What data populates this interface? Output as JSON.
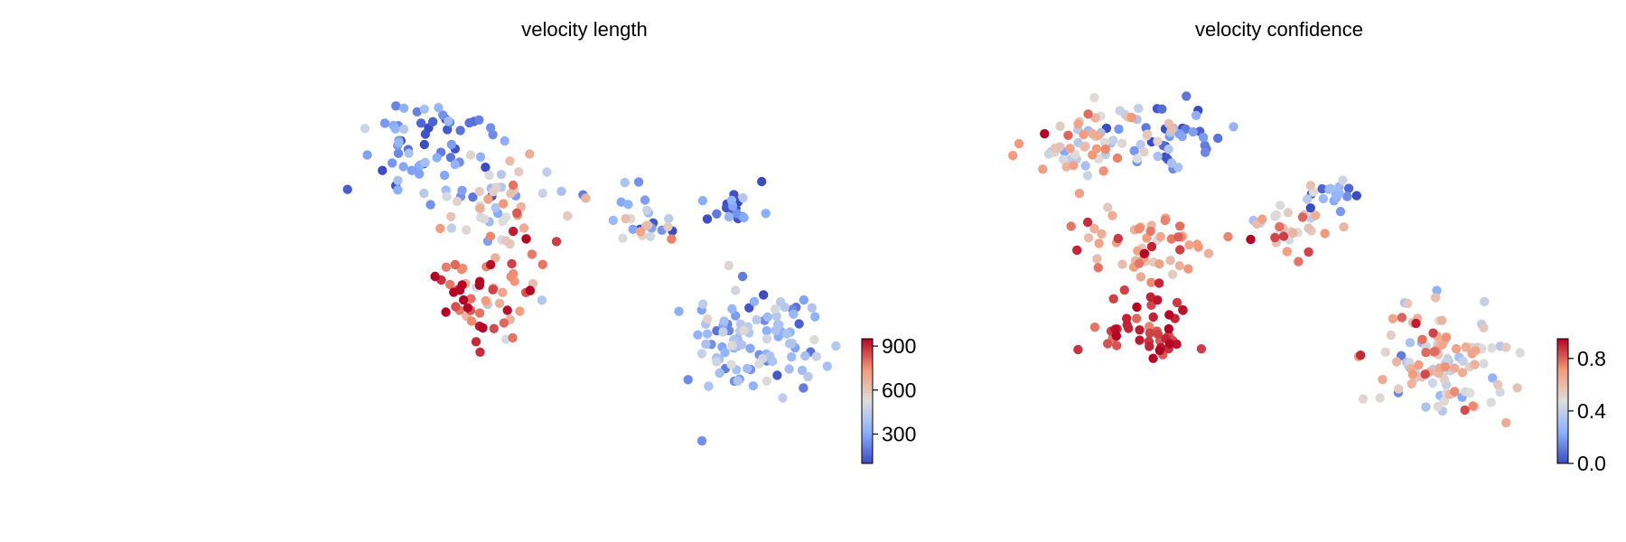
{
  "chart_data": [
    {
      "type": "scatter",
      "title": "velocity length",
      "xlabel": "",
      "ylabel": "",
      "colormap": "coolwarm",
      "colorbar": {
        "min": 100,
        "max": 950,
        "ticks": [
          300,
          600,
          900
        ],
        "tick_labels": [
          "300",
          "600",
          "900"
        ]
      },
      "clusters": [
        {
          "n": 60,
          "cx": 0.22,
          "cy": 0.79,
          "sx": 0.12,
          "sy": 0.1,
          "vmean": 220,
          "vsd": 110
        },
        {
          "n": 55,
          "cx": 0.34,
          "cy": 0.63,
          "sx": 0.13,
          "sy": 0.09,
          "vmean": 480,
          "vsd": 190
        },
        {
          "n": 60,
          "cx": 0.33,
          "cy": 0.39,
          "sx": 0.1,
          "sy": 0.11,
          "vmean": 820,
          "vsd": 140
        },
        {
          "n": 25,
          "cx": 0.6,
          "cy": 0.59,
          "sx": 0.06,
          "sy": 0.07,
          "vmean": 430,
          "vsd": 230
        },
        {
          "n": 20,
          "cx": 0.78,
          "cy": 0.62,
          "sx": 0.05,
          "sy": 0.04,
          "vmean": 230,
          "vsd": 110
        },
        {
          "n": 105,
          "cx": 0.81,
          "cy": 0.27,
          "sx": 0.11,
          "sy": 0.11,
          "vmean": 350,
          "vsd": 110
        }
      ]
    },
    {
      "type": "scatter",
      "title": "velocity confidence",
      "xlabel": "",
      "ylabel": "",
      "colormap": "coolwarm",
      "colorbar": {
        "min": 0.0,
        "max": 0.95,
        "ticks": [
          0.0,
          0.4,
          0.8
        ],
        "tick_labels": [
          "0.0",
          "0.4",
          "0.8"
        ]
      },
      "clusters": [
        {
          "n": 55,
          "cx": 0.14,
          "cy": 0.78,
          "sx": 0.09,
          "sy": 0.1,
          "vmean": 0.58,
          "vsd": 0.14
        },
        {
          "n": 45,
          "cx": 0.3,
          "cy": 0.8,
          "sx": 0.09,
          "sy": 0.08,
          "vmean": 0.18,
          "vsd": 0.18
        },
        {
          "n": 55,
          "cx": 0.25,
          "cy": 0.52,
          "sx": 0.11,
          "sy": 0.09,
          "vmean": 0.7,
          "vsd": 0.12
        },
        {
          "n": 45,
          "cx": 0.25,
          "cy": 0.3,
          "sx": 0.08,
          "sy": 0.07,
          "vmean": 0.87,
          "vsd": 0.07
        },
        {
          "n": 30,
          "cx": 0.5,
          "cy": 0.55,
          "sx": 0.07,
          "sy": 0.08,
          "vmean": 0.65,
          "vsd": 0.17
        },
        {
          "n": 20,
          "cx": 0.59,
          "cy": 0.65,
          "sx": 0.06,
          "sy": 0.04,
          "vmean": 0.2,
          "vsd": 0.15
        },
        {
          "n": 115,
          "cx": 0.8,
          "cy": 0.22,
          "sx": 0.11,
          "sy": 0.12,
          "vmean": 0.53,
          "vsd": 0.15
        }
      ]
    }
  ]
}
